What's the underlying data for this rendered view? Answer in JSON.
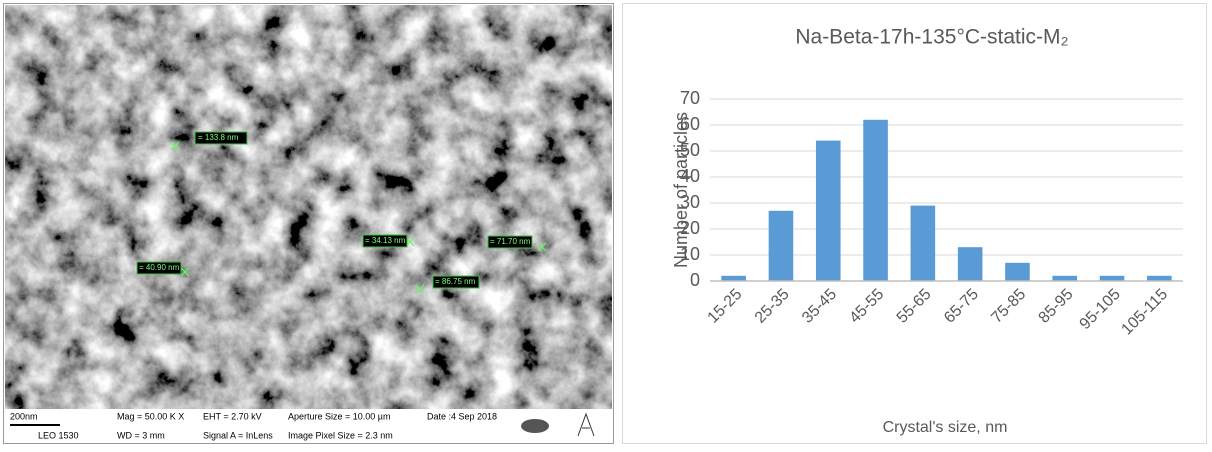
{
  "sem_image": {
    "measurements": [
      "= 133.8 nm",
      "= 34.13 nm",
      "= 71.70 nm",
      "= 40.90 nm",
      "= 86.75 nm"
    ],
    "scale_bar": "200nm",
    "instrument": "LEO 1530",
    "mag": "Mag = 50.00 K X",
    "wd": "WD =  3 mm",
    "eht": "EHT = 2.70 kV",
    "signal": "Signal A = InLens",
    "aperture": "Aperture Size = 10.00 µm",
    "pixel_size": "Image Pixel Size = 2.3 nm",
    "date": "Date :4 Sep 2018"
  },
  "chart_data": {
    "type": "bar",
    "title": "Na-Beta-17h-135°C-static-M₂",
    "x_label": "Crystal's size, nm",
    "y_label": "Number of particles",
    "categories": [
      "15-25",
      "25-35",
      "35-45",
      "45-55",
      "55-65",
      "65-75",
      "75-85",
      "85-95",
      "95-105",
      "105-115"
    ],
    "values": [
      2,
      27,
      54,
      62,
      29,
      13,
      7,
      2,
      2,
      2
    ],
    "color": "#5b9bd5",
    "ylim": [
      0,
      70
    ],
    "yticks": [
      0,
      10,
      20,
      30,
      40,
      50,
      60,
      70
    ],
    "grid": true
  }
}
